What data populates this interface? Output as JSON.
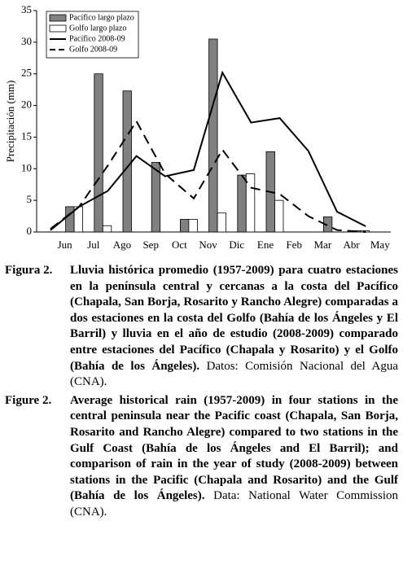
{
  "chart_data": {
    "type": "bar",
    "y_label": "Precipitación (mm)",
    "categories": [
      "Jun",
      "Jul",
      "Ago",
      "Sep",
      "Oct",
      "Nov",
      "Dic",
      "Ene",
      "Feb",
      "Mar",
      "Abr",
      "May"
    ],
    "series": [
      {
        "name": "Pacífico largo plazo",
        "type": "bar",
        "color": "#808080",
        "values": [
          4,
          25,
          22.3,
          11,
          2,
          30.5,
          9,
          12.7,
          0,
          2.4,
          0.2,
          0
        ]
      },
      {
        "name": "Golfo largo plazo",
        "type": "bar",
        "color": "#ffffff",
        "values": [
          4,
          1,
          0,
          0,
          2,
          3,
          9.2,
          5,
          0,
          0,
          0.2,
          0
        ]
      },
      {
        "name": "Pacífico 2008-09",
        "type": "line",
        "color": "#000000",
        "dashed": false,
        "values": [
          0.3,
          4,
          6.5,
          12,
          8.8,
          9.8,
          25.2,
          17.3,
          18,
          12.8,
          3.2,
          0.9
        ]
      },
      {
        "name": "Golfo 2008-09",
        "type": "line",
        "color": "#000000",
        "dashed": true,
        "values": [
          0.5,
          4,
          10.5,
          17.5,
          9.2,
          5.3,
          13,
          7,
          6,
          2.5,
          0.3,
          0
        ]
      }
    ],
    "ylim": [
      0,
      35
    ],
    "yticks": [
      0,
      5,
      10,
      15,
      20,
      25,
      30,
      35
    ],
    "legend": "upper left",
    "grid": false
  },
  "captions": [
    {
      "label": "Figura 2.",
      "bold": "Lluvia histórica promedio (1957-2009) para cuatro estaciones en la península central y cercanas a la costa del Pacífico (Chapala, San Borja, Rosarito y Rancho Alegre) comparadas a dos estaciones en la costa del Golfo (Bahía de los Ángeles y El Barril) y lluvia en el año de estudio (2008-2009) comparado entre estaciones del Pacífico (Chapala y Rosarito) y el Golfo (Bahía de los Ángeles).",
      "normal": "Datos: Comisión Nacional del Agua (CNA)."
    },
    {
      "label": "Figure 2.",
      "bold": "Average historical rain (1957-2009) in four stations in the central peninsula near the Pacific coast (Chapala, San Borja, Rosarito and Rancho Alegre) compared to two stations in the Gulf Coast (Bahía de los Ángeles and El Barril); and comparison of rain in the year of study (2008-2009) between stations in the Pacific (Chapala and Rosarito) and the Gulf (Bahía de los Ángeles).",
      "normal": "Data: National Water Commission (CNA)."
    }
  ]
}
